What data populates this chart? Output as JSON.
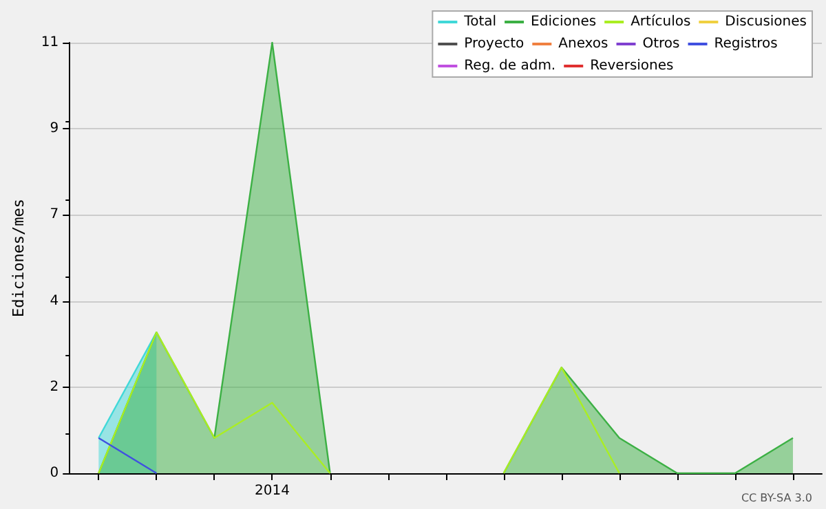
{
  "chart_data": {
    "type": "line",
    "ylabel": "Ediciones/mes",
    "categories": [
      null,
      null,
      null,
      "2014",
      null,
      null,
      null,
      null,
      null,
      null,
      null,
      null,
      null
    ],
    "series": [
      {
        "name": "Total",
        "type": "area",
        "color": "#40d8d8",
        "values": [
          0.9,
          3.6,
          null,
          null,
          null,
          null,
          null,
          null,
          null,
          null,
          null,
          null,
          null
        ]
      },
      {
        "name": "Ediciones",
        "type": "area",
        "color": "#3cb044",
        "values": [
          0,
          3.6,
          0.9,
          11,
          0,
          null,
          null,
          0,
          2.7,
          0.9,
          0,
          0,
          0.9
        ]
      },
      {
        "name": "Artículos",
        "color": "#aaee22",
        "values": [
          0,
          3.6,
          0.9,
          1.8,
          0,
          null,
          null,
          0,
          2.7,
          0,
          null,
          null,
          null
        ]
      },
      {
        "name": "Discusiones",
        "color": "#f0d040",
        "values": [
          null,
          null,
          null,
          null,
          null,
          null,
          null,
          null,
          null,
          null,
          null,
          null,
          null
        ]
      },
      {
        "name": "Proyecto",
        "color": "#505050",
        "values": [
          null,
          null,
          null,
          null,
          null,
          null,
          null,
          null,
          null,
          null,
          null,
          null,
          null
        ]
      },
      {
        "name": "Anexos",
        "color": "#f08040",
        "values": [
          null,
          null,
          null,
          null,
          null,
          null,
          null,
          null,
          null,
          null,
          null,
          null,
          null
        ]
      },
      {
        "name": "Otros",
        "color": "#8040d0",
        "values": [
          null,
          null,
          null,
          null,
          null,
          null,
          null,
          null,
          null,
          null,
          null,
          null,
          null
        ]
      },
      {
        "name": "Registros",
        "color": "#4050e0",
        "values": [
          0.9,
          0,
          null,
          null,
          null,
          null,
          null,
          null,
          null,
          null,
          null,
          null,
          null
        ]
      },
      {
        "name": "Reg. de adm.",
        "color": "#c050e0",
        "values": [
          null,
          null,
          null,
          null,
          null,
          null,
          null,
          null,
          null,
          null,
          null,
          null,
          null
        ]
      },
      {
        "name": "Reversiones",
        "color": "#e03030",
        "values": [
          null,
          null,
          null,
          null,
          null,
          null,
          null,
          null,
          null,
          null,
          null,
          null,
          null
        ]
      }
    ],
    "ylim": [
      0,
      11
    ],
    "yticks": [
      {
        "value": 0,
        "label": "0"
      },
      {
        "value": 2.2,
        "label": "2"
      },
      {
        "value": 4.4,
        "label": "4"
      },
      {
        "value": 6.6,
        "label": "7"
      },
      {
        "value": 8.8,
        "label": "9"
      },
      {
        "value": 11,
        "label": "11"
      }
    ],
    "grid": "y",
    "legend": "top right",
    "marker": "none",
    "line_style": "solid",
    "annotations": [
      "CC BY-SA 3.0"
    ]
  }
}
